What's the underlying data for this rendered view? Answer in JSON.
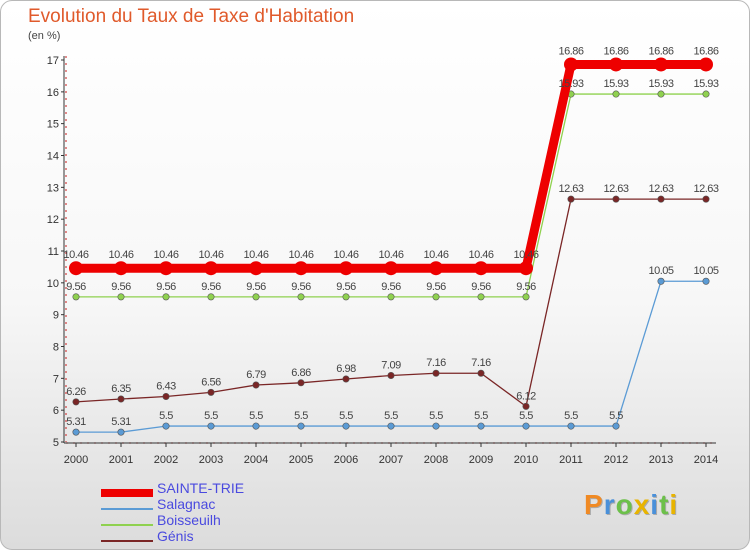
{
  "title": "Evolution du Taux de Taxe d'Habitation",
  "unit": "(en %)",
  "brand": "Proxiti",
  "chart_data": {
    "type": "line",
    "x": [
      2000,
      2001,
      2002,
      2003,
      2004,
      2005,
      2006,
      2007,
      2008,
      2009,
      2010,
      2011,
      2012,
      2013,
      2014
    ],
    "y_ticks": [
      5,
      6,
      7,
      8,
      9,
      10,
      11,
      12,
      13,
      14,
      15,
      16,
      17
    ],
    "ylim": [
      5,
      17
    ],
    "grid": false,
    "legend_position": "bottom-left",
    "series": [
      {
        "name": "SAINTE-TRIE",
        "color": "#ee0000",
        "emphasis": true,
        "values": [
          10.46,
          10.46,
          10.46,
          10.46,
          10.46,
          10.46,
          10.46,
          10.46,
          10.46,
          10.46,
          10.46,
          16.86,
          16.86,
          16.86,
          16.86
        ],
        "labels": [
          "10.46",
          "10.46",
          "10.46",
          "10.46",
          "10.46",
          "10.46",
          "10.46",
          "10.46",
          "10.46",
          "10.46",
          "10.46",
          "16.86",
          "16.86",
          "16.86",
          "16.86"
        ]
      },
      {
        "name": "Salagnac",
        "color": "#5b9bd5",
        "emphasis": false,
        "values": [
          5.31,
          5.31,
          5.5,
          5.5,
          5.5,
          5.5,
          5.5,
          5.5,
          5.5,
          5.5,
          5.5,
          5.5,
          5.5,
          10.05,
          10.05
        ],
        "labels": [
          "5.31",
          "5.31",
          "5.5",
          "5.5",
          "5.5",
          "5.5",
          "5.5",
          "5.5",
          "5.5",
          "5.5",
          "5.5",
          "5.5",
          "5.5",
          "10.05",
          "10.05"
        ]
      },
      {
        "name": "Boisseuilh",
        "color": "#8fd14f",
        "emphasis": false,
        "values": [
          9.56,
          9.56,
          9.56,
          9.56,
          9.56,
          9.56,
          9.56,
          9.56,
          9.56,
          9.56,
          9.56,
          15.93,
          15.93,
          15.93,
          15.93
        ],
        "labels": [
          "9.56",
          "9.56",
          "9.56",
          "9.56",
          "9.56",
          "9.56",
          "9.56",
          "9.56",
          "9.56",
          "9.56",
          "9.56",
          "15.93",
          "15.93",
          "15.93",
          "15.93"
        ]
      },
      {
        "name": "Génis",
        "color": "#7a2626",
        "emphasis": false,
        "values": [
          6.26,
          6.35,
          6.43,
          6.56,
          6.79,
          6.86,
          6.98,
          7.09,
          7.16,
          7.16,
          6.12,
          12.63,
          12.63,
          12.63,
          12.63
        ],
        "labels": [
          "6.26",
          "6.35",
          "6.43",
          "6.56",
          "6.79",
          "6.86",
          "6.98",
          "7.09",
          "7.16",
          "7.16",
          "6.12",
          "12.63",
          "12.63",
          "12.63",
          "12.63"
        ]
      }
    ]
  }
}
